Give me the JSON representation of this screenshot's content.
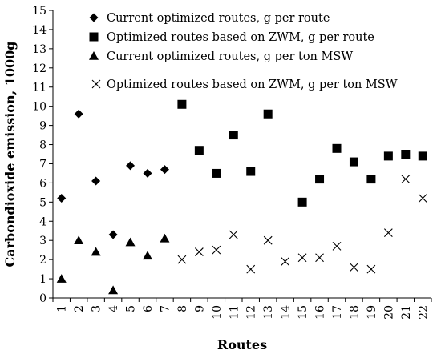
{
  "chart_data": {
    "type": "scatter",
    "xlabel": "Routes",
    "ylabel": "Carbondioxide emission, 1000g",
    "categories": [
      "1",
      "2",
      "3",
      "4",
      "5",
      "6",
      "7",
      "8",
      "9",
      "10",
      "11",
      "12",
      "13",
      "14",
      "15",
      "16",
      "17",
      "18",
      "19",
      "20",
      "21",
      "22"
    ],
    "ylim": [
      0,
      15
    ],
    "yticks": [
      0,
      1,
      2,
      3,
      4,
      5,
      6,
      7,
      8,
      9,
      10,
      11,
      12,
      13,
      14,
      15
    ],
    "grid": false,
    "legend_position": "top-left",
    "series": [
      {
        "name": "Current optimized routes, g per route",
        "marker": "diamond",
        "x": [
          1,
          2,
          3,
          4,
          5,
          6,
          7
        ],
        "y": [
          5.2,
          9.6,
          6.1,
          3.3,
          6.9,
          6.5,
          6.7
        ]
      },
      {
        "name": "Optimized routes based on ZWM, g per route",
        "marker": "square",
        "x": [
          8,
          9,
          10,
          11,
          12,
          13,
          15,
          16,
          17,
          18,
          19,
          20,
          21,
          22
        ],
        "y": [
          10.1,
          7.7,
          6.5,
          8.5,
          6.6,
          9.6,
          5.0,
          6.2,
          7.8,
          7.1,
          6.2,
          7.4,
          7.5,
          7.4
        ]
      },
      {
        "name": "Current optimized routes, g per ton MSW",
        "marker": "triangle",
        "x": [
          1,
          2,
          3,
          4,
          5,
          6,
          7
        ],
        "y": [
          1.0,
          3.0,
          2.4,
          0.4,
          2.9,
          2.2,
          3.1
        ]
      },
      {
        "name": "Optimized routes based on ZWM, g per ton MSW",
        "marker": "cross",
        "x": [
          8,
          9,
          10,
          11,
          12,
          13,
          14,
          15,
          16,
          17,
          18,
          19,
          20,
          21,
          22
        ],
        "y": [
          2.0,
          2.4,
          2.5,
          3.3,
          1.5,
          3.0,
          1.9,
          2.1,
          2.1,
          2.7,
          1.6,
          1.5,
          3.4,
          6.2,
          5.2
        ]
      }
    ]
  }
}
